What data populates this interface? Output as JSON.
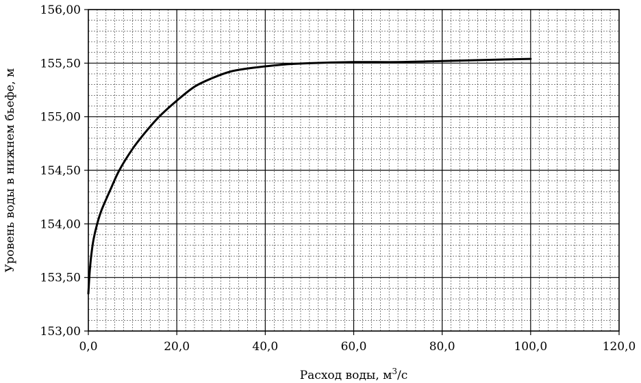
{
  "chart_data": {
    "type": "line",
    "title": "",
    "xlabel": "Расход воды, м³/с",
    "xlabel_main": "Расход воды, м",
    "xlabel_sup": "3",
    "xlabel_tail": "/с",
    "ylabel": "Уровень воды в нижнем бьефе, м",
    "xlim": [
      0,
      120
    ],
    "ylim": [
      153,
      156
    ],
    "x_ticks": [
      0,
      20,
      40,
      60,
      80,
      100,
      120
    ],
    "y_ticks": [
      153,
      153.5,
      154,
      154.5,
      155,
      155.5,
      156
    ],
    "x_tick_labels": [
      "0,0",
      "20,0",
      "40,0",
      "60,0",
      "80,0",
      "100,0",
      "120,0"
    ],
    "y_tick_labels": [
      "153,00",
      "153,50",
      "154,00",
      "154,50",
      "155,00",
      "155,50",
      "156,00"
    ],
    "grid": true,
    "series": [
      {
        "name": "Уровень воды",
        "color": "#000000",
        "x": [
          0,
          0.3,
          0.7,
          1.2,
          2,
          3,
          5,
          7,
          10,
          13,
          16,
          20,
          24,
          28,
          32,
          36,
          40,
          45,
          50,
          60,
          70,
          80,
          90,
          100
        ],
        "y": [
          153.35,
          153.55,
          153.72,
          153.86,
          154.0,
          154.13,
          154.32,
          154.5,
          154.7,
          154.86,
          155.0,
          155.15,
          155.28,
          155.36,
          155.42,
          155.45,
          155.47,
          155.49,
          155.5,
          155.51,
          155.51,
          155.52,
          155.53,
          155.54
        ]
      }
    ]
  }
}
